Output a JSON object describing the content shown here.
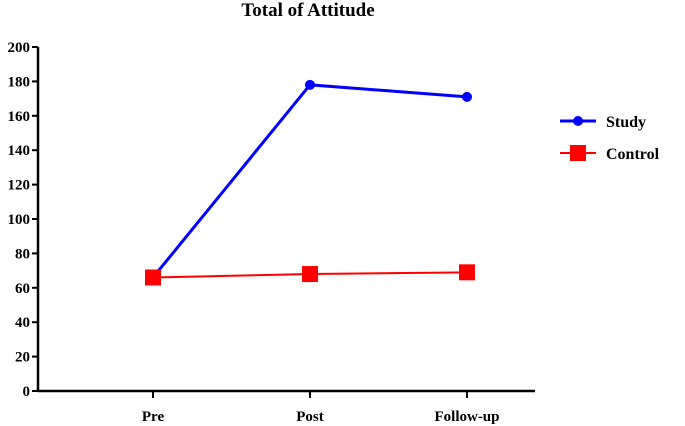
{
  "chart_data": {
    "type": "line",
    "title": "Total of Attitude",
    "xlabel": "",
    "ylabel": "",
    "categories": [
      "Pre",
      "Post",
      "Follow-up"
    ],
    "ylim": [
      0,
      200
    ],
    "yticks": [
      0,
      20,
      40,
      60,
      80,
      100,
      120,
      140,
      160,
      180,
      200
    ],
    "grid": false,
    "legend_position": "right",
    "series": [
      {
        "name": "Study",
        "values": [
          66,
          178,
          171
        ],
        "color": "#0000ff",
        "marker": "circle"
      },
      {
        "name": "Control",
        "values": [
          66,
          68,
          69
        ],
        "color": "#ff0000",
        "marker": "square"
      }
    ]
  }
}
